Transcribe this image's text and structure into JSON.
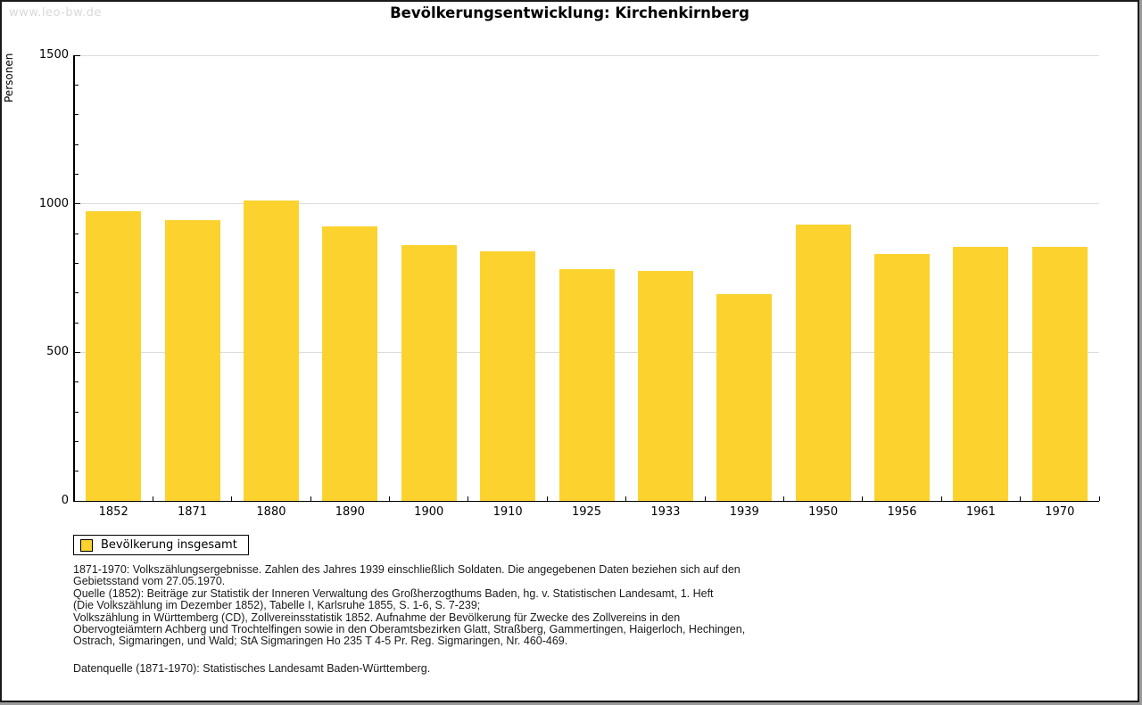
{
  "watermark": "www.leo-bw.de",
  "title": "Bevölkerungsentwicklung: Kirchenkirnberg",
  "chart_data": {
    "type": "bar",
    "title": "Bevölkerungsentwicklung: Kirchenkirnberg",
    "xlabel": "",
    "ylabel": "Personen",
    "categories": [
      "1852",
      "1871",
      "1880",
      "1890",
      "1900",
      "1910",
      "1925",
      "1933",
      "1939",
      "1950",
      "1956",
      "1961",
      "1970"
    ],
    "series": [
      {
        "name": "Bevölkerung insgesamt",
        "values": [
          975,
          945,
          1010,
          925,
          860,
          840,
          780,
          775,
          695,
          930,
          830,
          855,
          855
        ]
      }
    ],
    "ylim": [
      0,
      1500
    ],
    "yticks": [
      0,
      500,
      1000,
      1500
    ],
    "minor_tick_interval": 100,
    "grid": true,
    "bar_color": "#fcd32e",
    "legend_position": "bottom-left"
  },
  "legend": {
    "label": "Bevölkerung insgesamt",
    "swatch_color": "#fcd32e"
  },
  "footnote": {
    "lines": [
      "1871-1970: Volkszählungsergebnisse. Zahlen des Jahres 1939 einschließlich Soldaten. Die angegebenen Daten beziehen sich auf den",
      "Gebietsstand vom 27.05.1970.",
      "Quelle (1852): Beiträge zur Statistik der Inneren Verwaltung des Großherzogthums Baden, hg. v. Statistischen Landesamt, 1. Heft",
      "(Die Volkszählung im Dezember 1852), Tabelle I, Karlsruhe 1855, S. 1-6, S. 7-239;",
      "Volkszählung in Württemberg (CD), Zollvereinsstatistik 1852. Aufnahme der Bevölkerung für Zwecke des Zollvereins in den",
      "Obervogteiämtern Achberg und Trochtelfingen sowie in den Oberamtsbezirken Glatt, Straßberg, Gammertingen, Haigerloch, Hechingen,",
      "Ostrach, Sigmaringen, und Wald; StA Sigmaringen Ho 235 T 4-5 Pr. Reg. Sigmaringen, Nr. 460-469."
    ],
    "datasource": "Datenquelle (1871-1970): Statistisches Landesamt Baden-Württemberg."
  },
  "colors": {
    "bar": "#fcd32e",
    "gridline": "#dcdcdc",
    "axis": "#000000",
    "watermark": "#d9d9d9",
    "background": "#ffffff"
  }
}
